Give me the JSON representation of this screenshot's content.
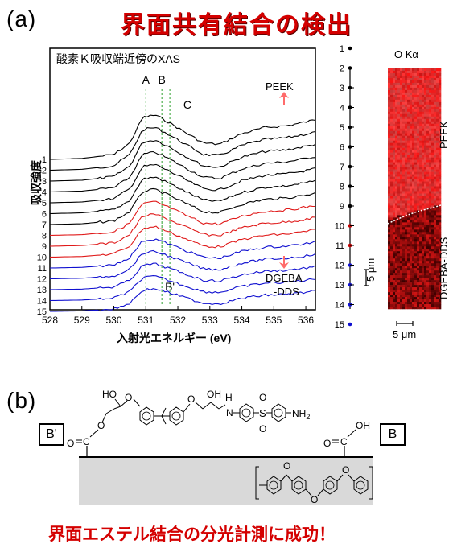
{
  "panel_a": {
    "label": "(a)",
    "title": "界面共有結合の検出",
    "chart_data": {
      "type": "line",
      "title": "酸素Ｋ吸収端近傍のXAS",
      "xlabel": "入射光エネルギー (eV)",
      "ylabel": "吸収強度",
      "xlim": [
        528,
        536.3
      ],
      "x_ticks": [
        "528",
        "529",
        "530",
        "531",
        "532",
        "533",
        "534",
        "535",
        "536"
      ],
      "peak_labels": [
        "A",
        "B",
        "C"
      ],
      "peak_positions_eV": [
        531.0,
        531.5,
        532.3
      ],
      "bprime_label": "B'",
      "bprime_position_eV": 531.75,
      "top_annotation": "PEEK",
      "bottom_annotation": "DGEBA\n-DDS",
      "series_labels": [
        "1",
        "2",
        "3",
        "4",
        "5",
        "6",
        "7",
        "8",
        "9",
        "10",
        "11",
        "12",
        "13",
        "14",
        "15"
      ],
      "series_colors": [
        "#000000",
        "#000000",
        "#000000",
        "#000000",
        "#000000",
        "#000000",
        "#000000",
        "#e01a1a",
        "#e01a1a",
        "#e01a1a",
        "#1010d0",
        "#1010d0",
        "#1010d0",
        "#1010d0",
        "#1010d0"
      ],
      "x": [
        528.0,
        529.0,
        530.0,
        530.5,
        530.9,
        531.3,
        531.7,
        532.3,
        532.8,
        533.3,
        534.0,
        534.7,
        535.4,
        536.0,
        536.3
      ],
      "series_shape": [
        0.0,
        0.02,
        0.1,
        0.35,
        0.9,
        0.95,
        0.8,
        0.55,
        0.35,
        0.32,
        0.55,
        0.68,
        0.72,
        0.8,
        0.85
      ],
      "colors": {
        "black": "#000000",
        "red": "#e01a1a",
        "blue": "#1010d0",
        "peak_line": "#2ca02c",
        "arrow": "#ff6b6b"
      }
    }
  },
  "map_panel": {
    "title": "O Kα",
    "point_labels": [
      "1",
      "2",
      "3",
      "4",
      "5",
      "6",
      "7",
      "8",
      "9",
      "10",
      "11",
      "12",
      "13",
      "14",
      "15"
    ],
    "point_colors": [
      "#000000",
      "#000000",
      "#000000",
      "#000000",
      "#000000",
      "#000000",
      "#000000",
      "#000000",
      "#000000",
      "#c00000",
      "#c00000",
      "#1010d0",
      "#1010d0",
      "#1010d0",
      "#1010d0"
    ],
    "scale_left": "5 μm",
    "scale_bottom": "5 μm",
    "region_top": "PEEK",
    "region_bottom": "DGEBA-DDS"
  },
  "panel_b": {
    "label": "(b)",
    "box_left": "B'",
    "box_right": "B",
    "groups": {
      "ho_top_left": "HO",
      "oh_top_mid": "OH",
      "h": "H",
      "n": "N",
      "s": "S",
      "o": "O",
      "nh2": "NH",
      "nh2_sub": "2",
      "cooh_o": "O",
      "cooh_oh": "OH",
      "ester_o": "O",
      "c": "C"
    }
  },
  "footer": "界面エステル結合の分光計測に成功！"
}
